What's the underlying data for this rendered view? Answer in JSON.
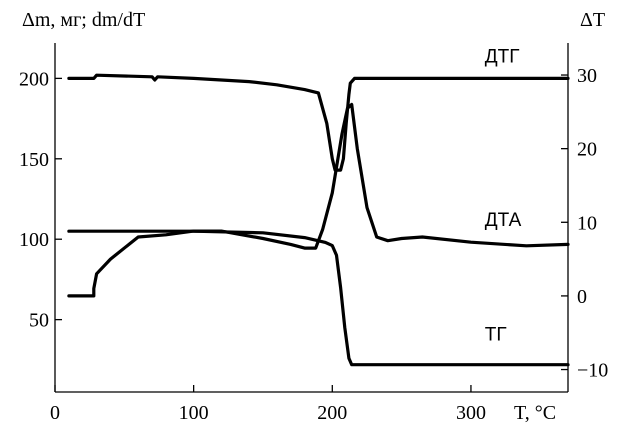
{
  "chart_data": {
    "type": "line",
    "left_axis_title": "Δm, мг; dm/dT",
    "right_axis_title": "ΔT",
    "x_axis_title": "T, °C",
    "x_ticks": [
      "0",
      "100",
      "200",
      "300"
    ],
    "left_ticks": [
      {
        "value": 50,
        "label": "50"
      },
      {
        "value": 100,
        "label": "100"
      },
      {
        "value": 150,
        "label": "150"
      },
      {
        "value": 200,
        "label": "200"
      }
    ],
    "right_ticks": [
      {
        "value": -10,
        "label": "−10"
      },
      {
        "value": 0,
        "label": "0"
      },
      {
        "value": 10,
        "label": "10"
      },
      {
        "value": 20,
        "label": "20"
      },
      {
        "value": 30,
        "label": "30"
      }
    ],
    "xlim": [
      0,
      370
    ],
    "ylim_left": [
      5,
      222
    ],
    "ylim_right": [
      -13.05,
      34.35
    ],
    "grid": false,
    "series": [
      {
        "name": "ДТГ",
        "axis": "left",
        "label_at": [
          310,
          210
        ],
        "points": [
          [
            10,
            200
          ],
          [
            28,
            200
          ],
          [
            30,
            202
          ],
          [
            70,
            201
          ],
          [
            72,
            199
          ],
          [
            74,
            201
          ],
          [
            100,
            200
          ],
          [
            140,
            198
          ],
          [
            160,
            196
          ],
          [
            180,
            193
          ],
          [
            190,
            191
          ],
          [
            196,
            172
          ],
          [
            200,
            150
          ],
          [
            202,
            143
          ],
          [
            206,
            143
          ],
          [
            208,
            150
          ],
          [
            210,
            172
          ],
          [
            212,
            190
          ],
          [
            213,
            197
          ],
          [
            216,
            200
          ],
          [
            250,
            200
          ],
          [
            300,
            200
          ],
          [
            350,
            200
          ],
          [
            370,
            200
          ]
        ]
      },
      {
        "name": "ДТА",
        "axis": "right",
        "label_at": [
          310,
          9.5
        ],
        "points": [
          [
            10,
            0
          ],
          [
            28,
            0
          ],
          [
            28,
            1
          ],
          [
            30,
            3
          ],
          [
            40,
            5
          ],
          [
            60,
            8
          ],
          [
            80,
            8.3
          ],
          [
            100,
            8.8
          ],
          [
            120,
            8.8
          ],
          [
            150,
            7.8
          ],
          [
            170,
            7
          ],
          [
            180,
            6.5
          ],
          [
            188,
            6.5
          ],
          [
            193,
            9
          ],
          [
            200,
            14
          ],
          [
            207,
            22
          ],
          [
            211,
            25.5
          ],
          [
            214,
            26
          ],
          [
            218,
            20
          ],
          [
            225,
            12
          ],
          [
            232,
            8
          ],
          [
            240,
            7.5
          ],
          [
            250,
            7.8
          ],
          [
            265,
            8
          ],
          [
            300,
            7.3
          ],
          [
            340,
            6.8
          ],
          [
            370,
            7
          ]
        ]
      },
      {
        "name": "ТГ",
        "axis": "left",
        "label_at": [
          310,
          37
        ],
        "points": [
          [
            10,
            105
          ],
          [
            50,
            105
          ],
          [
            100,
            105
          ],
          [
            150,
            104
          ],
          [
            180,
            101
          ],
          [
            195,
            98
          ],
          [
            200,
            96
          ],
          [
            203,
            90
          ],
          [
            206,
            70
          ],
          [
            209,
            45
          ],
          [
            212,
            26
          ],
          [
            214,
            22
          ],
          [
            225,
            22
          ],
          [
            260,
            22
          ],
          [
            300,
            22
          ],
          [
            340,
            22
          ],
          [
            370,
            22
          ]
        ]
      }
    ]
  }
}
